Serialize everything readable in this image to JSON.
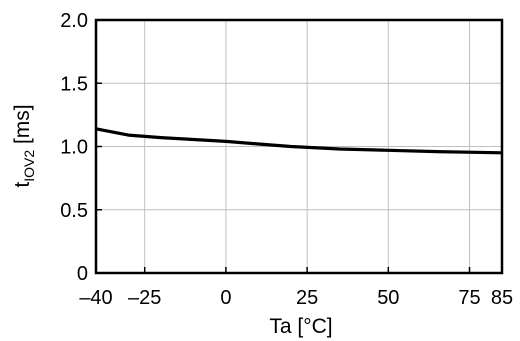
{
  "chart_data": {
    "type": "line",
    "title": "",
    "xlabel": "Ta [°C]",
    "ylabel_main": "t",
    "ylabel_sub": "IOV2",
    "ylabel_unit": " [ms]",
    "xlim": [
      -40,
      85
    ],
    "ylim": [
      0,
      2.0
    ],
    "x_ticks": [
      -40,
      -25,
      0,
      25,
      50,
      75,
      85
    ],
    "x_tick_labels": [
      "–40",
      "–25",
      "0",
      "25",
      "50",
      "75",
      "85"
    ],
    "y_ticks": [
      0,
      0.5,
      1.0,
      1.5,
      2.0
    ],
    "y_tick_labels": [
      "0",
      "0.5",
      "1.0",
      "1.5",
      "2.0"
    ],
    "grid": true,
    "series": [
      {
        "x": [
          -40,
          -30,
          -20,
          -10,
          0,
          10,
          20,
          35,
          50,
          65,
          85
        ],
        "y": [
          1.14,
          1.09,
          1.07,
          1.055,
          1.04,
          1.02,
          1.0,
          0.98,
          0.97,
          0.96,
          0.95
        ]
      }
    ],
    "colors": {
      "line": "#000000",
      "grid": "#c0c0c0",
      "frame": "#000000"
    }
  }
}
